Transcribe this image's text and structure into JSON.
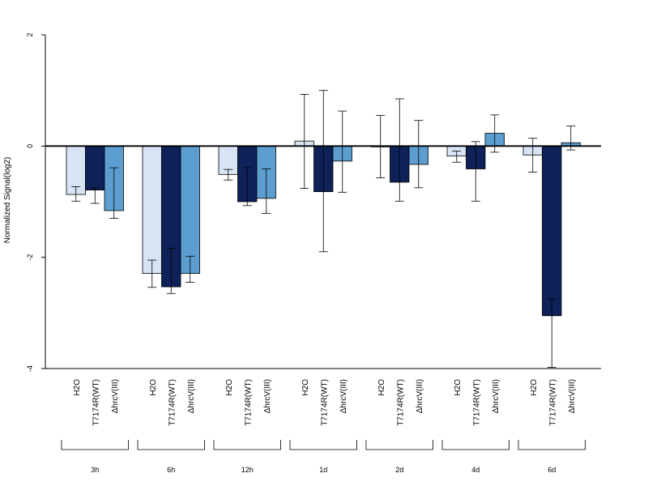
{
  "chart_data": {
    "type": "bar",
    "ylabel": "Normalized Signal(log2)",
    "ylim": [
      -4,
      2
    ],
    "yticks": [
      2,
      0,
      -2,
      -4
    ],
    "ytick_labels": [
      "2",
      "0",
      "-2",
      "-4"
    ],
    "groups": [
      "3h",
      "6h",
      "12h",
      "1d",
      "2d",
      "4d",
      "6d"
    ],
    "bar_labels": [
      "H2O",
      "T7174R(WT)",
      "ΔhrcV(III)"
    ],
    "series": [
      {
        "key": "h2o",
        "color": "#d6e4f4",
        "values": [
          -0.87,
          -2.29,
          -0.51,
          0.09,
          -0.01,
          -0.18,
          -0.16
        ],
        "error_high": [
          -0.73,
          -2.05,
          -0.42,
          0.93,
          0.55,
          -0.09,
          0.14
        ],
        "error_low": [
          -0.99,
          -2.54,
          -0.61,
          -0.76,
          -0.57,
          -0.29,
          -0.47
        ]
      },
      {
        "key": "wt",
        "color": "#0e2158",
        "values": [
          -0.79,
          -2.53,
          -1.0,
          -0.82,
          -0.65,
          -0.41,
          -3.05
        ],
        "error_high": [
          -0.75,
          -1.84,
          -0.39,
          1.0,
          0.85,
          0.08,
          -2.75
        ],
        "error_low": [
          -1.03,
          -2.65,
          -1.07,
          -1.9,
          -0.99,
          -0.99,
          -3.98
        ]
      },
      {
        "key": "hrcv",
        "color": "#5b9ecf",
        "values": [
          -1.16,
          -2.29,
          -0.94,
          -0.27,
          -0.33,
          0.23,
          0.06
        ],
        "error_high": [
          -0.39,
          -1.98,
          -0.41,
          0.63,
          0.46,
          0.56,
          0.36
        ],
        "error_low": [
          -1.3,
          -2.45,
          -1.21,
          -0.83,
          -0.75,
          -0.11,
          -0.07
        ]
      }
    ],
    "grid": false,
    "legend": "none",
    "zero_line": true
  }
}
